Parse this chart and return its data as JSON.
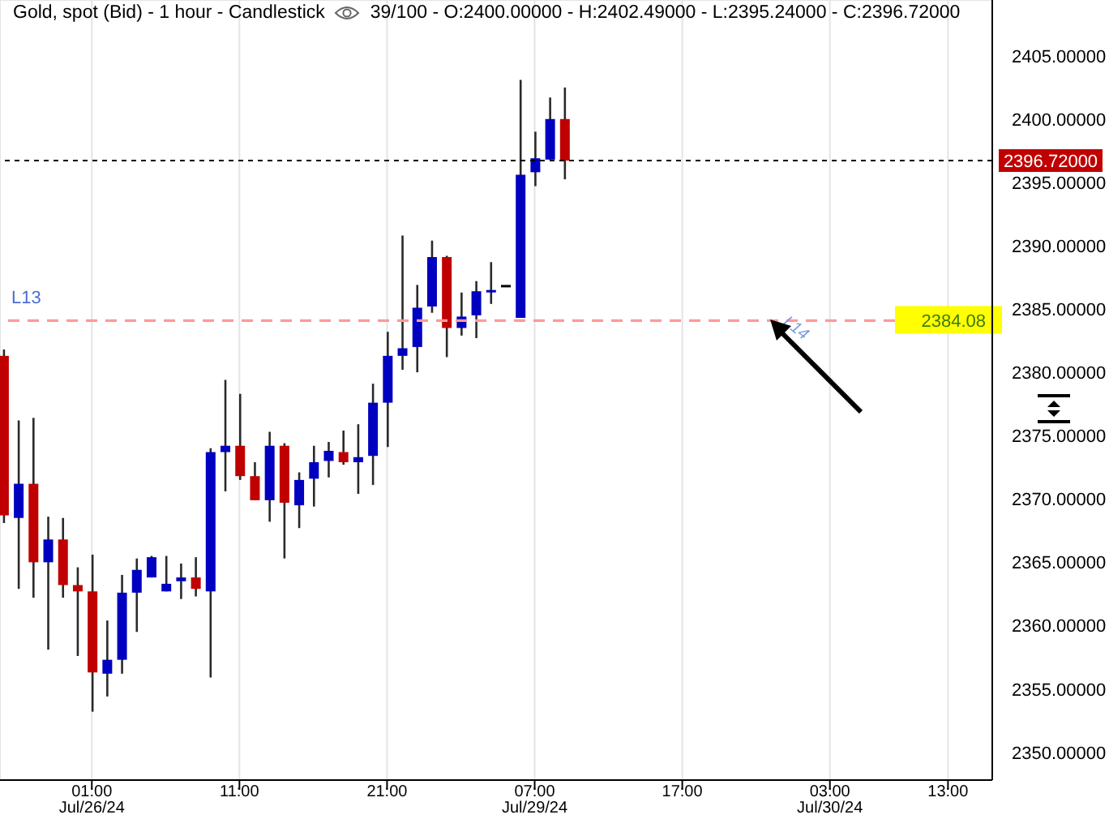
{
  "chart_data": {
    "type": "candlestick",
    "title": "Gold, spot (Bid) - 1 hour - Candlestick",
    "subtitle": "39/100 - O:2400.00000 - H:2402.49000 - L:2395.24000 - C:2396.72000",
    "categories": [
      null,
      null,
      null,
      null,
      null,
      null,
      "01:00\nJul/26/24",
      null,
      null,
      null,
      null,
      null,
      null,
      null,
      null,
      null,
      "11:00",
      null,
      null,
      null,
      null,
      null,
      null,
      null,
      null,
      null,
      "21:00",
      null,
      null,
      null,
      null,
      null,
      null,
      null,
      null,
      null,
      "07:00\nJul/29/24",
      null,
      null,
      null,
      null,
      null,
      null,
      null,
      null,
      null,
      "17:00",
      null,
      null,
      null,
      null,
      null,
      null,
      null,
      null,
      null,
      "03:00\nJul/30/24",
      null,
      null,
      null,
      null,
      null,
      null,
      null,
      "13:00",
      null,
      null,
      null
    ],
    "ohlc": [
      [
        2381.3,
        2381.8,
        2368.1,
        2368.7
      ],
      [
        2368.5,
        2376.2,
        2362.9,
        2371.2
      ],
      [
        2371.2,
        2376.4,
        2362.2,
        2365.0
      ],
      [
        2365.0,
        2368.6,
        2358.1,
        2366.8
      ],
      [
        2366.8,
        2368.5,
        2362.2,
        2363.2
      ],
      [
        2363.2,
        2364.6,
        2357.6,
        2362.7
      ],
      [
        2362.7,
        2365.6,
        2353.2,
        2356.3
      ],
      [
        2356.2,
        2360.4,
        2354.4,
        2357.3
      ],
      [
        2357.3,
        2364.0,
        2356.2,
        2362.6
      ],
      [
        2362.6,
        2365.3,
        2359.5,
        2364.4
      ],
      [
        2363.8,
        2365.5,
        2363.8,
        2365.4
      ],
      [
        2362.7,
        2365.5,
        2362.7,
        2363.3
      ],
      [
        2363.5,
        2364.9,
        2362.1,
        2363.8
      ],
      [
        2363.8,
        2365.4,
        2362.3,
        2362.9
      ],
      [
        2362.7,
        2374.0,
        2355.9,
        2373.7
      ],
      [
        2373.7,
        2379.4,
        2370.6,
        2374.2
      ],
      [
        2374.2,
        2378.3,
        2371.5,
        2371.8
      ],
      [
        2371.8,
        2372.9,
        2369.9,
        2369.9
      ],
      [
        2369.9,
        2375.3,
        2368.2,
        2374.2
      ],
      [
        2374.2,
        2374.4,
        2365.3,
        2369.7
      ],
      [
        2369.5,
        2372.1,
        2367.7,
        2371.5
      ],
      [
        2371.6,
        2374.2,
        2369.4,
        2372.9
      ],
      [
        2373.0,
        2374.5,
        2371.7,
        2373.8
      ],
      [
        2373.7,
        2375.4,
        2372.7,
        2372.9
      ],
      [
        2372.9,
        2375.9,
        2370.4,
        2373.3
      ],
      [
        2373.4,
        2379.1,
        2371.1,
        2377.6
      ],
      [
        2377.6,
        2383.2,
        2374.1,
        2381.3
      ],
      [
        2381.3,
        2390.8,
        2380.2,
        2381.9
      ],
      [
        2382.0,
        2386.9,
        2380.0,
        2385.1
      ],
      [
        2385.2,
        2390.4,
        2384.7,
        2389.1
      ],
      [
        2389.1,
        2389.2,
        2381.2,
        2383.5
      ],
      [
        2383.5,
        2386.3,
        2382.9,
        2384.4
      ],
      [
        2384.5,
        2387.2,
        2382.7,
        2386.4
      ],
      [
        2386.4,
        2388.7,
        2385.4,
        2386.5
      ],
      [
        2386.9,
        2386.9,
        2386.9,
        2386.9
      ],
      [
        2384.3,
        2403.1,
        2384.3,
        2395.6
      ],
      [
        2395.8,
        2399.0,
        2394.7,
        2396.9
      ],
      [
        2396.8,
        2401.7,
        2396.8,
        2400.0
      ],
      [
        2400.0,
        2402.49,
        2395.24,
        2396.72
      ],
      null,
      null,
      null,
      null,
      null,
      null,
      null,
      null,
      null,
      null,
      null,
      null,
      null,
      null,
      null,
      null,
      null,
      null,
      null,
      null,
      null,
      null,
      null,
      null,
      null,
      null,
      null,
      null,
      null
    ],
    "colors": [
      "#c00000",
      "#0000c0",
      "#c00000",
      "#0000c0",
      "#c00000",
      "#c00000",
      "#c00000",
      "#0000c0",
      "#0000c0",
      "#0000c0",
      "#0000c0",
      "#0000c0",
      "#0000c0",
      "#c00000",
      "#0000c0",
      "#0000c0",
      "#c00000",
      "#c00000",
      "#0000c0",
      "#c00000",
      "#0000c0",
      "#0000c0",
      "#0000c0",
      "#c00000",
      "#0000c0",
      "#0000c0",
      "#0000c0",
      "#0000c0",
      "#0000c0",
      "#0000c0",
      "#c00000",
      "#0000c0",
      "#0000c0",
      "#0000c0",
      "#000000",
      "#0000c0",
      "#0000c0",
      "#0000c0",
      "#c00000",
      null,
      null,
      null,
      null,
      null,
      null,
      null,
      null,
      null,
      null,
      null,
      null,
      null,
      null,
      null,
      null,
      null,
      null,
      null,
      null,
      null,
      null,
      null,
      null,
      null,
      null,
      null,
      null,
      null
    ],
    "ylim": [
      2347.8,
      2409.4
    ],
    "yticks": [
      {
        "value": 2350,
        "label": "2350.00000"
      },
      {
        "value": 2355,
        "label": "2355.00000"
      },
      {
        "value": 2360,
        "label": "2360.00000"
      },
      {
        "value": 2365,
        "label": "2365.00000"
      },
      {
        "value": 2370,
        "label": "2370.00000"
      },
      {
        "value": 2375,
        "label": "2375.00000"
      },
      {
        "value": 2380,
        "label": "2380.00000"
      },
      {
        "value": 2385,
        "label": "2385.00000"
      },
      {
        "value": 2390,
        "label": "2390.00000"
      },
      {
        "value": 2395,
        "label": "2395.00000"
      },
      {
        "value": 2400,
        "label": "2400.00000"
      },
      {
        "value": 2405,
        "label": "2405.00000"
      }
    ],
    "grid": true,
    "ref_lines": [
      {
        "axis": "y",
        "value": 2396.72,
        "label": "2396.72000",
        "color": "#000000",
        "line_style": "dotted"
      },
      {
        "axis": "y",
        "value": 2384.08,
        "label": "2384.08",
        "color": "#ff9999",
        "line_style": "dashed"
      }
    ],
    "annotations": [
      {
        "text": "L13",
        "y": 2384.08
      },
      {
        "text": "L14",
        "y": 2384.08
      }
    ]
  }
}
